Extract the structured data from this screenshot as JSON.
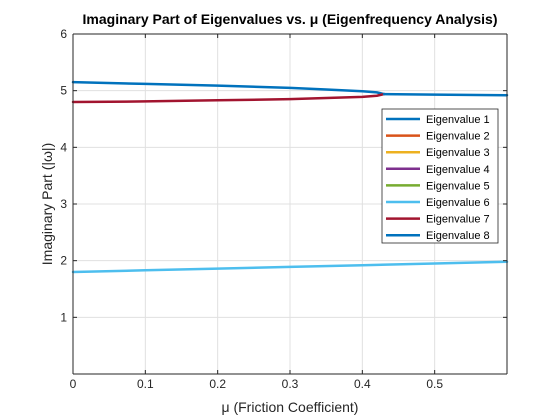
{
  "chart_data": {
    "type": "line",
    "title": "Imaginary Part of Eigenvalues vs. μ (Eigenfrequency Analysis)",
    "xlabel": "μ (Friction Coefficient)",
    "ylabel": "Imaginary Part (|ω|)",
    "xlim": [
      0,
      0.6
    ],
    "ylim": [
      0,
      6
    ],
    "xticks": [
      0,
      0.1,
      0.2,
      0.3,
      0.4,
      0.5
    ],
    "yticks": [
      1,
      2,
      3,
      4,
      5,
      6
    ],
    "grid": true,
    "legend_position": "right",
    "series": [
      {
        "name": "Eigenvalue 1",
        "color": "#0072bd",
        "x": [
          0,
          0.1,
          0.2,
          0.3,
          0.35,
          0.4,
          0.42,
          0.43
        ],
        "y": [
          5.15,
          5.12,
          5.09,
          5.05,
          5.02,
          4.99,
          4.97,
          4.94
        ]
      },
      {
        "name": "Eigenvalue 2",
        "color": "#d95319",
        "x": [],
        "y": []
      },
      {
        "name": "Eigenvalue 3",
        "color": "#edb120",
        "x": [],
        "y": []
      },
      {
        "name": "Eigenvalue 4",
        "color": "#7e2f8e",
        "x": [],
        "y": []
      },
      {
        "name": "Eigenvalue 5",
        "color": "#77ac30",
        "x": [],
        "y": []
      },
      {
        "name": "Eigenvalue 6",
        "color": "#4dbeee",
        "x": [
          0,
          0.1,
          0.2,
          0.3,
          0.4,
          0.5,
          0.6
        ],
        "y": [
          1.8,
          1.83,
          1.86,
          1.89,
          1.92,
          1.95,
          1.98
        ]
      },
      {
        "name": "Eigenvalue 7",
        "color": "#a2142f",
        "x": [
          0,
          0.1,
          0.2,
          0.3,
          0.35,
          0.4,
          0.42,
          0.43
        ],
        "y": [
          4.8,
          4.81,
          4.83,
          4.85,
          4.87,
          4.89,
          4.91,
          4.94
        ]
      },
      {
        "name": "Eigenvalue 8",
        "color": "#0072bd",
        "x": [
          0.43,
          0.5,
          0.6
        ],
        "y": [
          4.94,
          4.93,
          4.92
        ]
      }
    ]
  }
}
